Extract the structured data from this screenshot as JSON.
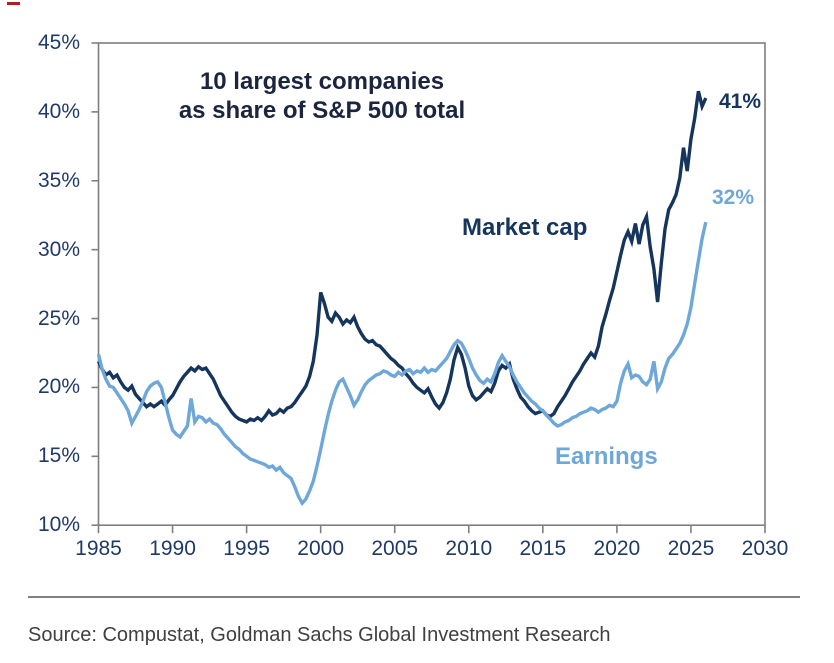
{
  "figure": {
    "title_line1": "10 largest companies",
    "title_line2": "as share of S&P 500 total",
    "source": "Source: Compustat, Goldman Sachs Global Investment Research"
  },
  "colors": {
    "navy": "#16355c",
    "light_blue": "#6ea7da",
    "title_text": "#1b2540",
    "axis_label": "#1f3a68",
    "axis_frame": "#7f7f7f",
    "divider": "#808080",
    "source_text": "#404040",
    "red_mark": "#b01e1e",
    "background": "#ffffff"
  },
  "chart_data": {
    "type": "line",
    "title": "10 largest companies as share of S&P 500 total",
    "grid": false,
    "legend_position": "inline-labels",
    "x_axis": {
      "min": 1985,
      "max": 2030,
      "ticks": [
        {
          "v": 1985,
          "label": "1985"
        },
        {
          "v": 1990,
          "label": "1990"
        },
        {
          "v": 1995,
          "label": "1995"
        },
        {
          "v": 2000,
          "label": "2000"
        },
        {
          "v": 2005,
          "label": "2005"
        },
        {
          "v": 2010,
          "label": "2010"
        },
        {
          "v": 2015,
          "label": "2015"
        },
        {
          "v": 2020,
          "label": "2020"
        },
        {
          "v": 2025,
          "label": "2025"
        },
        {
          "v": 2030,
          "label": "2030"
        }
      ]
    },
    "y_axis": {
      "min": 10,
      "max": 45,
      "ticks": [
        {
          "v": 45,
          "label": "45%"
        },
        {
          "v": 40,
          "label": "40%"
        },
        {
          "v": 35,
          "label": "35%"
        },
        {
          "v": 30,
          "label": "30%"
        },
        {
          "v": 25,
          "label": "25%"
        },
        {
          "v": 20,
          "label": "20%"
        },
        {
          "v": 15,
          "label": "15%"
        },
        {
          "v": 10,
          "label": "10%"
        }
      ]
    },
    "series": [
      {
        "name": "Market cap",
        "color": "#16355c",
        "end_label": "41%",
        "end_value": 41,
        "x_start": 1985,
        "x_step": 0.25,
        "values": [
          21.9,
          21.3,
          20.9,
          21.1,
          20.7,
          20.9,
          20.4,
          20.0,
          19.8,
          20.1,
          19.5,
          19.2,
          18.9,
          18.6,
          18.8,
          18.6,
          18.8,
          19.0,
          18.7,
          19.1,
          19.4,
          19.9,
          20.4,
          20.8,
          21.1,
          21.4,
          21.2,
          21.5,
          21.3,
          21.4,
          21.0,
          20.6,
          20.0,
          19.4,
          19.0,
          18.6,
          18.2,
          17.9,
          17.7,
          17.6,
          17.5,
          17.7,
          17.6,
          17.8,
          17.6,
          17.9,
          18.3,
          18.0,
          18.1,
          18.4,
          18.2,
          18.5,
          18.6,
          18.9,
          19.3,
          19.7,
          20.1,
          20.8,
          21.9,
          23.8,
          26.9,
          26.1,
          25.1,
          24.8,
          25.4,
          25.1,
          24.6,
          24.9,
          24.7,
          25.1,
          24.4,
          23.9,
          23.5,
          23.3,
          23.4,
          23.1,
          23.0,
          22.7,
          22.4,
          22.1,
          21.9,
          21.6,
          21.4,
          21.0,
          20.7,
          20.3,
          20.0,
          19.8,
          19.6,
          19.9,
          19.3,
          18.8,
          18.5,
          18.9,
          19.6,
          20.6,
          22.0,
          22.9,
          22.4,
          21.4,
          20.1,
          19.4,
          19.1,
          19.3,
          19.6,
          19.9,
          19.7,
          20.3,
          21.2,
          21.6,
          21.4,
          21.7,
          20.6,
          19.9,
          19.3,
          19.0,
          18.6,
          18.3,
          18.1,
          18.2,
          18.3,
          18.0,
          17.9,
          18.1,
          18.6,
          19.0,
          19.4,
          19.9,
          20.4,
          20.8,
          21.2,
          21.7,
          22.1,
          22.5,
          22.2,
          23.0,
          24.4,
          25.3,
          26.3,
          27.2,
          28.4,
          29.6,
          30.7,
          31.3,
          30.6,
          31.9,
          30.4,
          31.8,
          32.4,
          30.2,
          28.6,
          26.2,
          29.0,
          31.5,
          32.9,
          33.4,
          34.0,
          35.2,
          37.4,
          35.7,
          38.0,
          39.5,
          41.5,
          40.4,
          41.0
        ]
      },
      {
        "name": "Earnings",
        "color": "#6ea7da",
        "end_label": "32%",
        "end_value": 32,
        "x_start": 1985,
        "x_step": 0.25,
        "values": [
          22.4,
          21.3,
          20.6,
          20.1,
          20.0,
          19.6,
          19.2,
          18.8,
          18.3,
          17.4,
          17.9,
          18.4,
          19.0,
          19.7,
          20.1,
          20.3,
          20.4,
          20.0,
          18.9,
          17.8,
          16.9,
          16.6,
          16.4,
          16.8,
          17.2,
          19.2,
          17.5,
          17.9,
          17.8,
          17.5,
          17.7,
          17.4,
          17.3,
          17.0,
          16.6,
          16.3,
          16.0,
          15.7,
          15.5,
          15.2,
          15.0,
          14.8,
          14.7,
          14.6,
          14.5,
          14.4,
          14.2,
          14.3,
          14.0,
          14.2,
          13.8,
          13.6,
          13.4,
          12.8,
          12.1,
          11.6,
          11.9,
          12.5,
          13.2,
          14.3,
          15.5,
          16.8,
          18.0,
          19.0,
          19.8,
          20.4,
          20.6,
          20.0,
          19.4,
          18.7,
          19.1,
          19.7,
          20.2,
          20.5,
          20.7,
          20.9,
          21.0,
          21.2,
          21.1,
          20.9,
          20.8,
          21.1,
          20.9,
          21.2,
          21.3,
          21.0,
          21.2,
          21.1,
          21.4,
          21.1,
          21.3,
          21.2,
          21.5,
          21.8,
          22.1,
          22.6,
          23.1,
          23.4,
          23.2,
          22.7,
          22.1,
          21.4,
          20.9,
          20.5,
          20.3,
          20.6,
          20.4,
          21.0,
          21.8,
          22.3,
          21.9,
          21.5,
          20.9,
          20.4,
          20.0,
          19.6,
          19.3,
          19.0,
          18.8,
          18.5,
          18.3,
          18.0,
          17.7,
          17.4,
          17.2,
          17.3,
          17.5,
          17.6,
          17.8,
          17.9,
          18.1,
          18.2,
          18.3,
          18.5,
          18.4,
          18.2,
          18.4,
          18.5,
          18.7,
          18.6,
          19.0,
          20.3,
          21.2,
          21.7,
          20.7,
          20.9,
          20.8,
          20.4,
          20.2,
          20.6,
          21.9,
          19.9,
          20.4,
          21.4,
          22.1,
          22.4,
          22.8,
          23.2,
          23.8,
          24.6,
          25.8,
          27.5,
          29.2,
          30.8,
          32.0
        ]
      }
    ]
  }
}
